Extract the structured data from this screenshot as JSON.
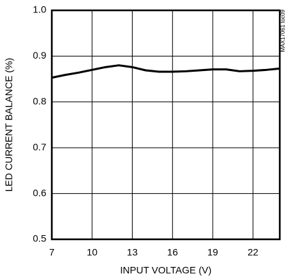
{
  "chart_data": {
    "type": "line",
    "x_label": "INPUT VOLTAGE (V)",
    "y_label": "LED CURRENT BALANCE (%)",
    "annotation": "MAX17061 toc09",
    "x": [
      7,
      8,
      9,
      10,
      11,
      12,
      13,
      14,
      15,
      16,
      17,
      18,
      19,
      20,
      21,
      22,
      23,
      24
    ],
    "series": [
      {
        "color": "#000000",
        "values": [
          0.853,
          0.859,
          0.864,
          0.87,
          0.876,
          0.88,
          0.876,
          0.869,
          0.866,
          0.866,
          0.867,
          0.869,
          0.871,
          0.871,
          0.867,
          0.868,
          0.87,
          0.873
        ]
      }
    ],
    "xlim": [
      7,
      24
    ],
    "xticks": [
      7,
      10,
      13,
      16,
      19,
      22
    ],
    "ylim": [
      0.5,
      1
    ],
    "yticks": [
      0.5,
      0.6,
      0.7,
      0.8,
      0.9,
      {
        "value": 1,
        "label": "1.0"
      }
    ],
    "grid": true
  }
}
